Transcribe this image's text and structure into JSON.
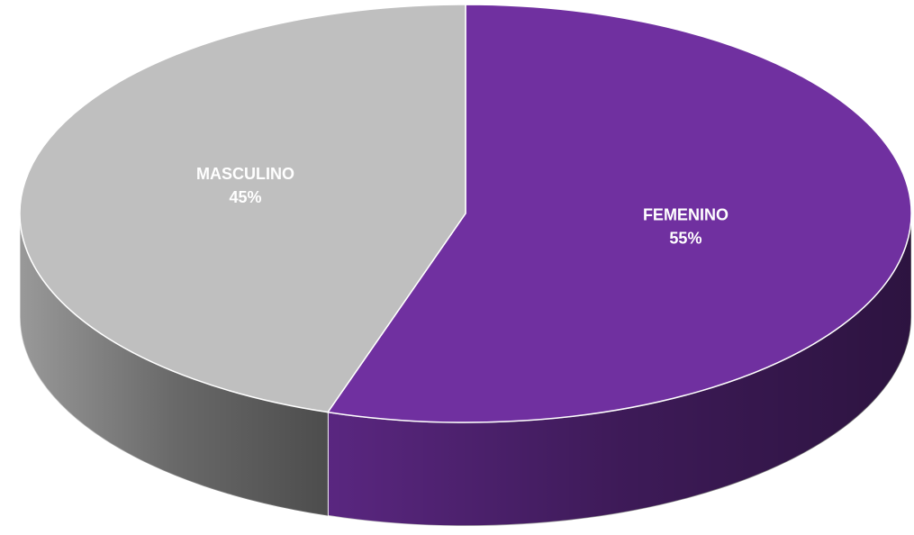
{
  "chart_data": {
    "type": "pie3d",
    "categories": [
      "FEMENINO",
      "MASCULINO"
    ],
    "values": [
      55,
      45
    ],
    "value_labels": [
      "55%",
      "45%"
    ],
    "colors": [
      "#7030a0",
      "#bfbfbf"
    ]
  }
}
